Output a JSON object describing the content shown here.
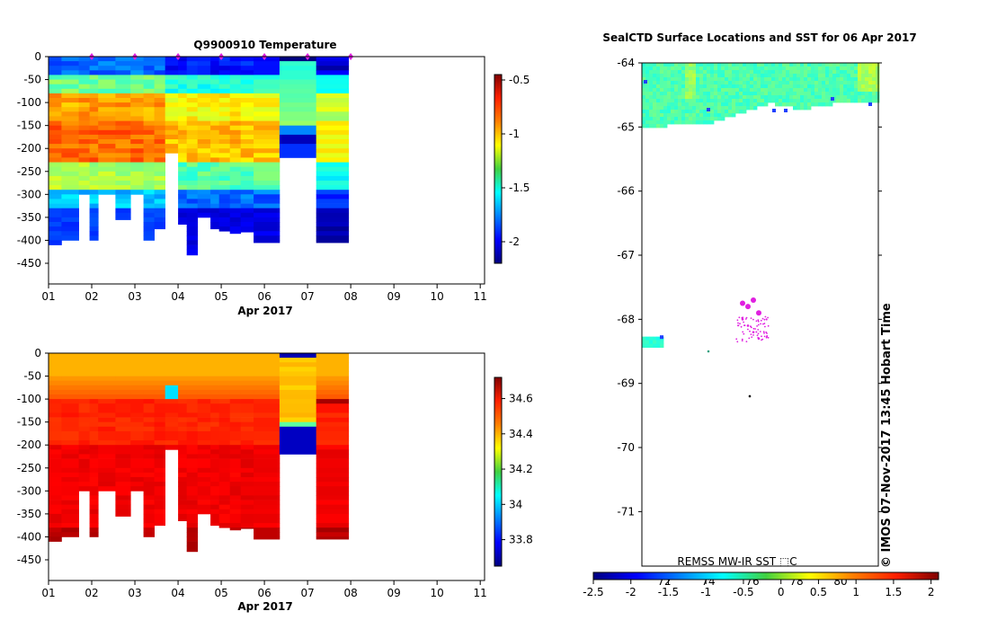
{
  "chart_data": [
    {
      "type": "heatmap",
      "title": "Q9900910  Temperature",
      "xlabel": "Apr 2017",
      "ylabel": "",
      "x_ticks": [
        "01",
        "02",
        "03",
        "04",
        "05",
        "06",
        "07",
        "08",
        "09",
        "10",
        "11"
      ],
      "xlim": [
        1,
        11.1
      ],
      "y_ticks": [
        0,
        -50,
        -100,
        -150,
        -200,
        -250,
        -300,
        -350,
        -400,
        -450
      ],
      "ylim": [
        -495,
        0
      ],
      "colorbar": {
        "min": -2.2,
        "max": -0.45,
        "ticks": [
          -0.5,
          -1,
          -1.5,
          -2
        ]
      },
      "markers_days": [
        2.0,
        3.0,
        4.0,
        5.0,
        6.0,
        7.0,
        8.0
      ],
      "profiles": [
        {
          "start": 1.0,
          "end": 1.3,
          "depth": 410
        },
        {
          "start": 1.3,
          "end": 1.7,
          "depth": 400
        },
        {
          "start": 1.7,
          "end": 1.95,
          "depth": 300
        },
        {
          "start": 1.95,
          "end": 2.15,
          "depth": 400
        },
        {
          "start": 2.15,
          "end": 2.55,
          "depth": 300
        },
        {
          "start": 2.55,
          "end": 2.9,
          "depth": 355
        },
        {
          "start": 2.9,
          "end": 3.2,
          "depth": 300
        },
        {
          "start": 3.2,
          "end": 3.45,
          "depth": 400
        },
        {
          "start": 3.45,
          "end": 3.7,
          "depth": 375
        },
        {
          "start": 3.7,
          "end": 4.0,
          "depth": 210
        },
        {
          "start": 4.0,
          "end": 4.2,
          "depth": 365
        },
        {
          "start": 4.2,
          "end": 4.45,
          "depth": 432
        },
        {
          "start": 4.45,
          "end": 4.75,
          "depth": 350
        },
        {
          "start": 4.75,
          "end": 4.95,
          "depth": 375
        },
        {
          "start": 4.95,
          "end": 5.2,
          "depth": 380
        },
        {
          "start": 5.2,
          "end": 5.45,
          "depth": 385
        },
        {
          "start": 5.45,
          "end": 5.75,
          "depth": 382
        },
        {
          "start": 5.75,
          "end": 6.35,
          "depth": 405
        },
        {
          "start": 6.35,
          "end": 7.2,
          "depth": 220
        },
        {
          "start": 7.2,
          "end": 7.95,
          "depth": 405
        }
      ]
    },
    {
      "type": "heatmap",
      "title": "",
      "xlabel": "Apr 2017",
      "ylabel": "",
      "x_ticks": [
        "01",
        "02",
        "03",
        "04",
        "05",
        "06",
        "07",
        "08",
        "09",
        "10",
        "11"
      ],
      "xlim": [
        1,
        11.1
      ],
      "y_ticks": [
        0,
        -50,
        -100,
        -150,
        -200,
        -250,
        -300,
        -350,
        -400,
        -450
      ],
      "ylim": [
        -495,
        0
      ],
      "colorbar": {
        "min": 33.65,
        "max": 34.72,
        "ticks": [
          34.6,
          34.4,
          34.2,
          34,
          33.8
        ]
      }
    },
    {
      "type": "heatmap",
      "title": "SealCTD Surface Locations and SST for 06 Apr 2017",
      "xlabel": "",
      "ylabel": "",
      "y_ticks": [
        -64,
        -65,
        -66,
        -67,
        -68,
        -69,
        -70,
        -71
      ],
      "ylim": [
        -71.85,
        -64
      ],
      "x_tick_labels_inside": [
        "72",
        "74",
        "76",
        "78",
        "80"
      ],
      "colorbar": {
        "label": "REMSS MW-IR SST ⬚C",
        "min": -2.5,
        "max": 2.1,
        "ticks": [
          "-2.5",
          "-2",
          "-1.5",
          "-1",
          "-0.5",
          "0",
          "0.5",
          "1",
          "1.5",
          "2"
        ]
      },
      "side_text": "©  IMOS 07-Nov-2017 13:45 Hobart Time",
      "seal_points_lat": [
        -67.75,
        -67.8,
        -67.7,
        -67.9,
        -68.0,
        -68.1,
        -68.2,
        -68.3,
        -68.5,
        -69.2
      ]
    }
  ]
}
